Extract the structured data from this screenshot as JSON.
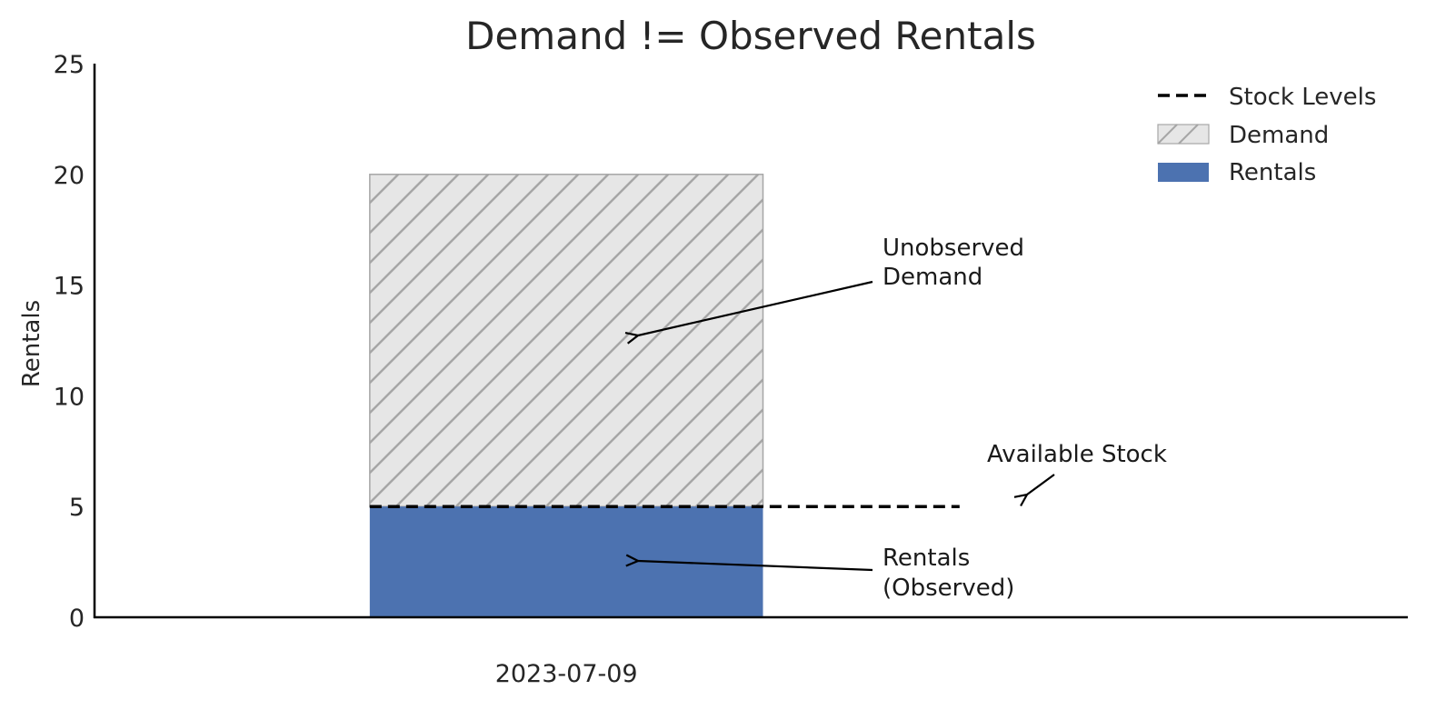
{
  "chart_data": {
    "type": "bar",
    "title": "Demand != Observed Rentals",
    "xlabel": "",
    "ylabel": "Rentals",
    "categories": [
      "2023-07-09"
    ],
    "series": [
      {
        "name": "Rentals",
        "values": [
          5
        ]
      },
      {
        "name": "Demand",
        "values": [
          20
        ]
      }
    ],
    "stock": {
      "name": "Stock Levels",
      "value": 5,
      "x_range": [
        -0.5,
        1.0
      ]
    },
    "ylim": [
      0,
      25
    ],
    "yticks": [
      "0",
      "5",
      "10",
      "15",
      "20",
      "25"
    ],
    "grid": false,
    "legend_position": "top-right",
    "legend": [
      "Stock Levels",
      "Demand",
      "Rentals"
    ],
    "annotations": {
      "unobserved_line1": "Unobserved",
      "unobserved_line2": "Demand",
      "rentals_line1": "Rentals",
      "rentals_line2": "(Observed)",
      "available_stock": "Available Stock"
    },
    "colors": {
      "rentals": "#4c72b0",
      "demand_fill": "#e6e6e6",
      "demand_hatch": "#a6a6a6",
      "stock_line": "#000000"
    }
  }
}
